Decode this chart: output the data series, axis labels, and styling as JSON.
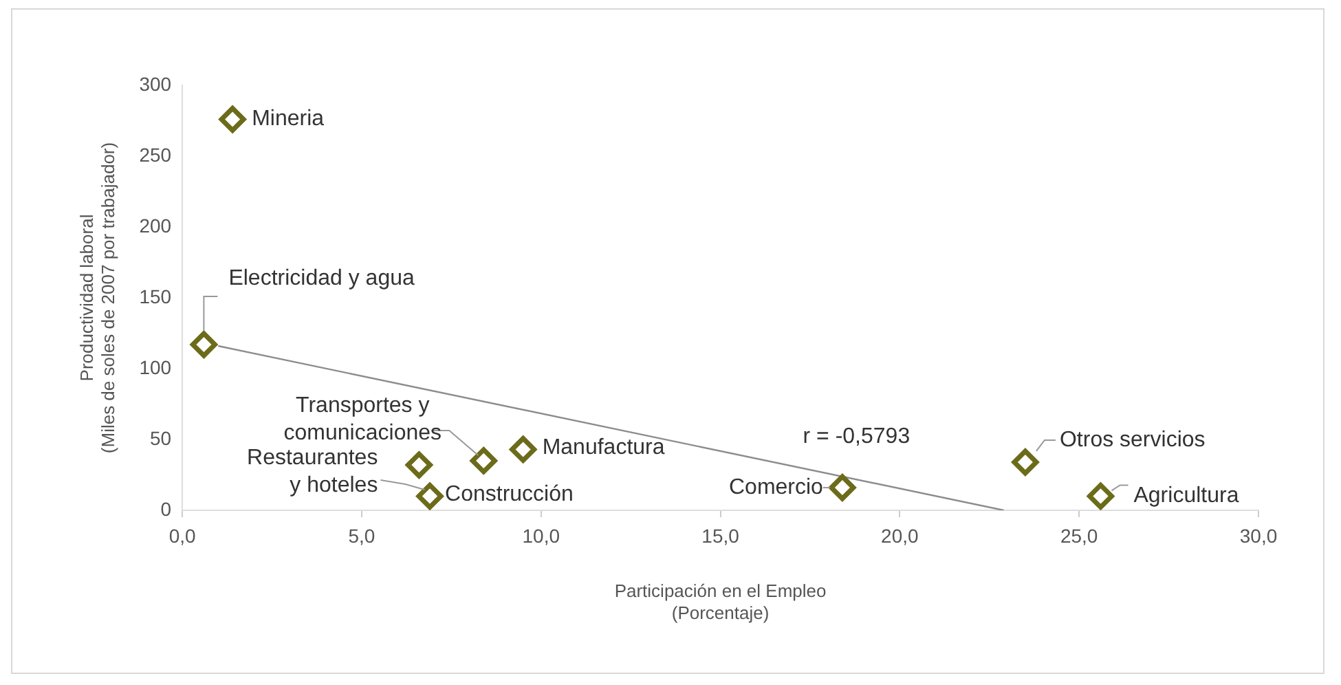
{
  "chart_data": {
    "type": "scatter",
    "xlabel": "Participación en el Empleo\n(Porcentaje)",
    "ylabel": "Productividad laboral\n(Miles de soles de 2007 por trabajador)",
    "xlim": [
      0,
      30
    ],
    "xticks": [
      {
        "value": 0,
        "label": "0,0"
      },
      {
        "value": 5,
        "label": "5,0"
      },
      {
        "value": 10,
        "label": "10,0"
      },
      {
        "value": 15,
        "label": "15,0"
      },
      {
        "value": 20,
        "label": "20,0"
      },
      {
        "value": 25,
        "label": "25,0"
      },
      {
        "value": 30,
        "label": "30,0"
      }
    ],
    "ylim": [
      0,
      300
    ],
    "yticks": [
      0,
      50,
      100,
      150,
      200,
      250,
      300
    ],
    "grid": false,
    "marker": "diamond",
    "series": [
      {
        "color": "#6b6b1a",
        "x": [
          1.4,
          0.6,
          6.6,
          6.9,
          8.4,
          9.5,
          18.4,
          23.5,
          25.6
        ],
        "values": [
          276,
          117,
          32,
          10,
          35,
          43,
          16,
          34,
          10
        ]
      },
      {
        "type": "line",
        "marker": "none",
        "color": "#8c8c8c",
        "x": [
          1.0,
          22.9
        ],
        "values": [
          116,
          0
        ]
      }
    ],
    "annotations": [
      {
        "text": "Mineria",
        "x": 1.4,
        "y": 276
      },
      {
        "text": "Electricidad y agua",
        "x": 0.6,
        "y": 117
      },
      {
        "text": "Restaurantes\ny hoteles",
        "x": 6.6,
        "y": 32
      },
      {
        "text": "Construcción",
        "x": 6.9,
        "y": 10
      },
      {
        "text": "Transportes y\ncomunicaciones",
        "x": 8.4,
        "y": 35
      },
      {
        "text": "Manufactura",
        "x": 9.5,
        "y": 43
      },
      {
        "text": "Comercio",
        "x": 18.4,
        "y": 16
      },
      {
        "text": "Otros servicios",
        "x": 23.5,
        "y": 34
      },
      {
        "text": "Agricultura",
        "x": 25.6,
        "y": 10
      },
      "r = -0,5793"
    ]
  }
}
